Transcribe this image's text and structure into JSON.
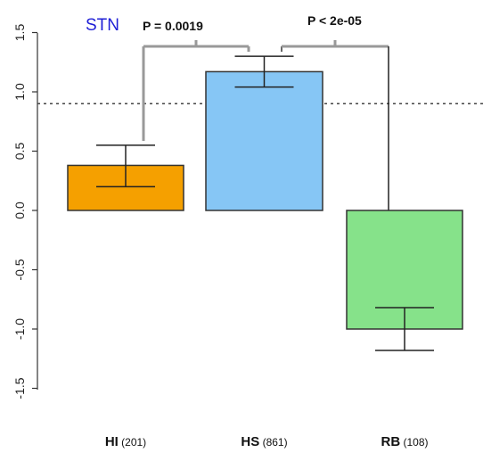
{
  "chart_data": {
    "type": "bar",
    "title": "STN",
    "title_color": "#1f1fd6",
    "categories": [
      "HI",
      "HS",
      "RB"
    ],
    "counts": [
      "201",
      "861",
      "108"
    ],
    "values": [
      0.38,
      1.17,
      -1.0
    ],
    "error_low": [
      0.2,
      1.04,
      -1.18
    ],
    "error_high": [
      0.55,
      1.3,
      -0.82
    ],
    "colors": [
      "#f5a000",
      "#86c6f5",
      "#86e28a"
    ],
    "ylim": [
      -1.5,
      1.5
    ],
    "yticks": [
      "1.5",
      "1.0",
      "0.5",
      "0.0",
      "-0.5",
      "-1.0",
      "-1.5"
    ],
    "reference_line": 0.9,
    "grid": false,
    "comparisons": [
      {
        "from": "HI",
        "to": "HS",
        "label": "P = 0.0019"
      },
      {
        "from": "HS",
        "to": "RB",
        "label": "P < 2e-05"
      }
    ]
  }
}
